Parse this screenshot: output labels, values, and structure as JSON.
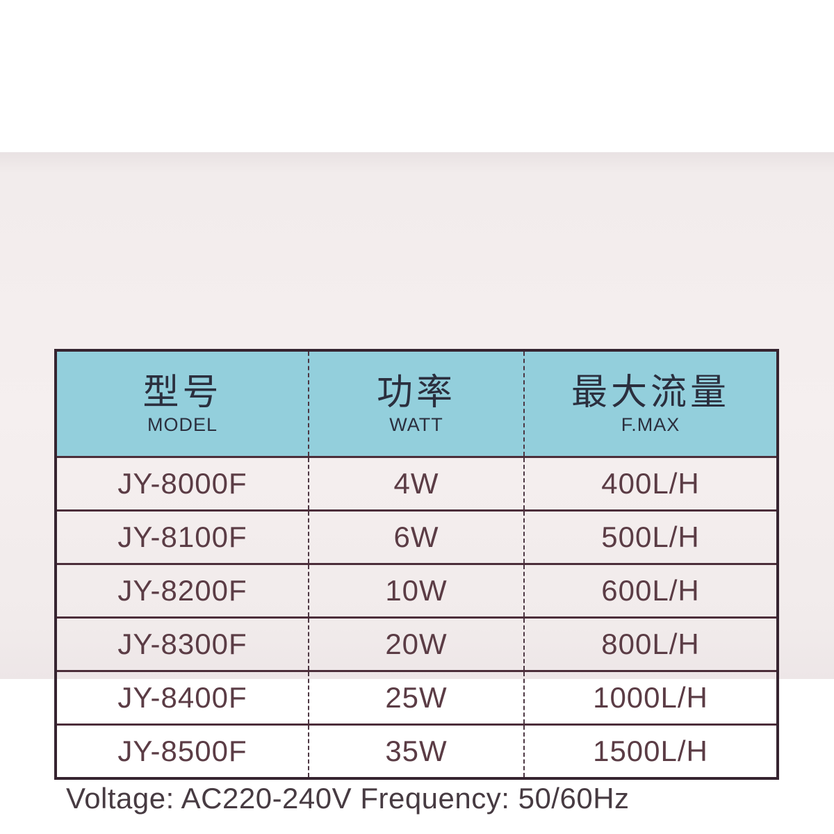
{
  "page": {
    "background": "#ffffff",
    "card_background": "#f2ecec"
  },
  "table": {
    "header_background": "#93cfdc",
    "border_color": "#362430",
    "text_color": "#5b3c45",
    "header_text_color": "#2b2f3e",
    "columns": [
      {
        "zh": "型号",
        "en": "MODEL"
      },
      {
        "zh": "功率",
        "en": "WATT"
      },
      {
        "zh": "最大流量",
        "en": "F.MAX"
      }
    ],
    "rows": [
      {
        "model": "JY-8000F",
        "watt": "4W",
        "fmax": "400L/H"
      },
      {
        "model": "JY-8100F",
        "watt": "6W",
        "fmax": "500L/H"
      },
      {
        "model": "JY-8200F",
        "watt": "10W",
        "fmax": "600L/H"
      },
      {
        "model": "JY-8300F",
        "watt": "20W",
        "fmax": "800L/H"
      },
      {
        "model": "JY-8400F",
        "watt": "25W",
        "fmax": "1000L/H"
      },
      {
        "model": "JY-8500F",
        "watt": "35W",
        "fmax": "1500L/H"
      }
    ]
  },
  "footer": {
    "note": "Voltage: AC220-240V Frequency: 50/60Hz"
  }
}
